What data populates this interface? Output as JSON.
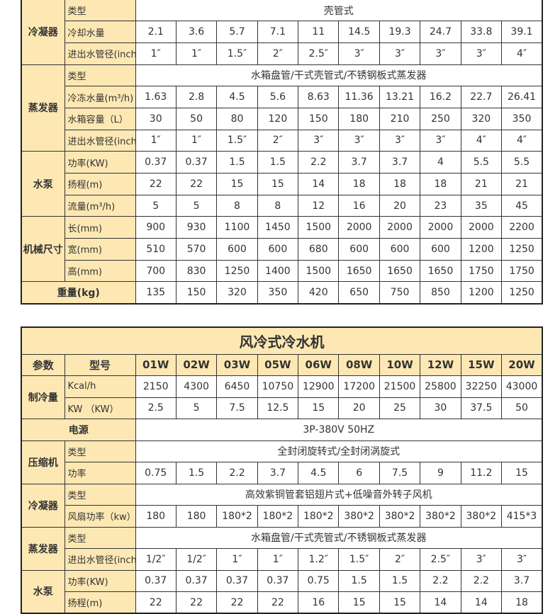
{
  "table1": {
    "groups": [
      {
        "label": "冷凝器",
        "rows": [
          {
            "label": "类型",
            "merged": "壳管式"
          },
          {
            "label": "冷却水量",
            "cells": [
              2.1,
              3.6,
              5.7,
              7.1,
              11,
              14.5,
              19.3,
              24.7,
              33.8,
              39.1
            ]
          },
          {
            "label": "进出水管径(inch)",
            "cells": [
              "1″",
              "1″",
              "1.5″",
              "2″",
              "2.5″",
              "3″",
              "3″",
              "3″",
              "3″",
              "4″"
            ]
          }
        ]
      },
      {
        "label": "蒸发器",
        "rows": [
          {
            "label": "类型",
            "merged": "水箱盘管/干式壳管式/不锈钢板式蒸发器"
          },
          {
            "label": "冷冻水量(m³/h)",
            "cells": [
              1.63,
              2.8,
              4.5,
              5.6,
              8.63,
              11.36,
              13.21,
              16.2,
              22.7,
              26.41
            ]
          },
          {
            "label": "水箱容量（L）",
            "cells": [
              30,
              50,
              80,
              120,
              150,
              180,
              210,
              250,
              320,
              350
            ]
          },
          {
            "label": "进出水管径(inch)",
            "cells": [
              "1″",
              "1″",
              "1.5″",
              "2″",
              "3″",
              "3″",
              "3″",
              "3″",
              "4″",
              "4″"
            ]
          }
        ]
      },
      {
        "label": "水泵",
        "rows": [
          {
            "label": "功率(KW)",
            "cells": [
              0.37,
              0.37,
              1.5,
              1.5,
              2.2,
              3.7,
              3.7,
              4,
              5.5,
              5.5
            ]
          },
          {
            "label": "扬程(m)",
            "cells": [
              22,
              22,
              15,
              15,
              14,
              18,
              18,
              18,
              21,
              21
            ]
          },
          {
            "label": "流量(m³/h)",
            "cells": [
              5,
              5,
              8,
              8,
              12,
              16,
              20,
              23,
              35,
              45
            ]
          }
        ]
      },
      {
        "label": "机械尺寸",
        "rows": [
          {
            "label": "长(mm)",
            "cells": [
              900,
              930,
              1100,
              1450,
              1500,
              2000,
              2000,
              2000,
              2000,
              2200
            ]
          },
          {
            "label": "宽(mm)",
            "cells": [
              510,
              570,
              600,
              600,
              680,
              600,
              600,
              600,
              1200,
              1250
            ]
          },
          {
            "label": "高(mm)",
            "cells": [
              700,
              830,
              1250,
              1400,
              1500,
              1650,
              1650,
              1650,
              1750,
              1750
            ]
          }
        ]
      },
      {
        "label": "重量(kg)",
        "cells": [
          135,
          150,
          320,
          350,
          420,
          650,
          750,
          850,
          1200,
          1250
        ]
      }
    ]
  },
  "table2": {
    "title": "风冷式冷水机",
    "header": {
      "param": "参数",
      "model": "型号",
      "models": [
        "01W",
        "02W",
        "03W",
        "05W",
        "06W",
        "08W",
        "10W",
        "12W",
        "15W",
        "20W"
      ]
    },
    "groups": [
      {
        "label": "制冷量",
        "rows": [
          {
            "label": "Kcal/h",
            "cells": [
              2150,
              4300,
              6450,
              10750,
              12900,
              17200,
              21500,
              25800,
              32250,
              43000
            ]
          },
          {
            "label": "KW （KW）",
            "cells": [
              2.5,
              5,
              7.5,
              12.5,
              15,
              20,
              25,
              30,
              37.5,
              50
            ]
          }
        ]
      },
      {
        "label": "电源",
        "merged": "3P-380V 50HZ"
      },
      {
        "label": "压缩机",
        "rows": [
          {
            "label": "类型",
            "merged": "全封闭旋转式/全封闭涡旋式"
          },
          {
            "label": "功率",
            "cells": [
              0.75,
              1.5,
              2.2,
              3.7,
              4.5,
              6,
              7.5,
              9,
              11.2,
              15
            ]
          }
        ]
      },
      {
        "label": "冷凝器",
        "rows": [
          {
            "label": "类型",
            "merged": "高效紫铜管套铝翅片式+低噪音外转子风机"
          },
          {
            "label": "风扇功率（kw）",
            "cells": [
              180,
              180,
              "180*2",
              "180*2",
              "180*2",
              "380*2",
              "380*2",
              "380*2",
              "380*2",
              "415*3"
            ]
          }
        ]
      },
      {
        "label": "蒸发器",
        "rows": [
          {
            "label": "类型",
            "merged": "水箱盘管/干式壳管式/不锈钢板式蒸发器"
          },
          {
            "label": "进出水管径(inch)",
            "cells": [
              "1/2″",
              "1/2″",
              "1″",
              "1″",
              "1.2″",
              "1.5″",
              "2″",
              "2.5″",
              "3″",
              "3″"
            ]
          }
        ]
      },
      {
        "label": "水泵",
        "rows": [
          {
            "label": "功率(KW)",
            "cells": [
              0.37,
              0.37,
              0.37,
              0.37,
              0.75,
              1.5,
              1.5,
              2.2,
              2.2,
              3.7
            ]
          },
          {
            "label": "扬程(m)",
            "cells": [
              22,
              22,
              22,
              22,
              16,
              15,
              15,
              14,
              14,
              18
            ]
          }
        ]
      }
    ]
  }
}
